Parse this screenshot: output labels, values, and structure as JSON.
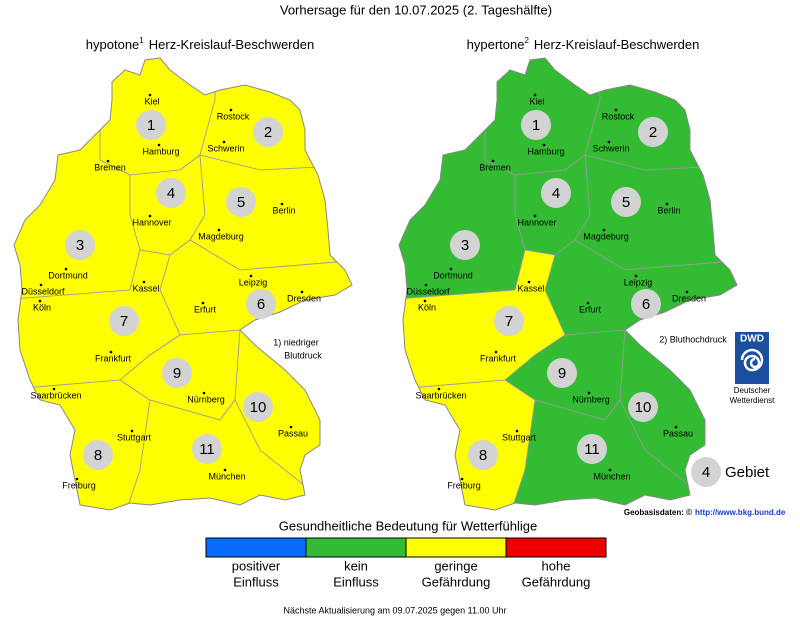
{
  "title": "Vorhersage für den 10.07.2025 (2. Tageshälfte)",
  "maps": [
    {
      "name": "hypotone",
      "sup": "1",
      "subtitle": "Herz-Kreislauf-Beschwerden",
      "regions": [
        {
          "label": "1",
          "color": "#ffff00"
        },
        {
          "label": "2",
          "color": "#ffff00"
        },
        {
          "label": "3",
          "color": "#ffff00"
        },
        {
          "label": "4",
          "color": "#ffff00"
        },
        {
          "label": "5",
          "color": "#ffff00"
        },
        {
          "label": "6",
          "color": "#ffff00"
        },
        {
          "label": "7",
          "color": "#ffff00"
        },
        {
          "label": "8",
          "color": "#ffff00"
        },
        {
          "label": "9",
          "color": "#ffff00"
        },
        {
          "label": "10",
          "color": "#ffff00"
        },
        {
          "label": "11",
          "color": "#ffff00"
        }
      ],
      "cities": [
        "Kiel",
        "Rostock",
        "Hamburg",
        "Schwerin",
        "Bremen",
        "Hannover",
        "Berlin",
        "Magdeburg",
        "Dortmund",
        "Düsseldorf",
        "Köln",
        "Kassel",
        "Leipzig",
        "Dresden",
        "Erfurt",
        "Frankfurt",
        "Saarbrücken",
        "Nürnberg",
        "Passau",
        "Stuttgart",
        "München",
        "Freiburg"
      ],
      "note": [
        "1) niedriger",
        "Blutdruck"
      ]
    },
    {
      "name": "hypertone",
      "sup": "2",
      "subtitle": "Herz-Kreislauf-Beschwerden",
      "regions": [
        {
          "label": "1",
          "color": "#33bb33"
        },
        {
          "label": "2",
          "color": "#33bb33"
        },
        {
          "label": "3",
          "color": "#33bb33"
        },
        {
          "label": "4",
          "color": "#33bb33"
        },
        {
          "label": "5",
          "color": "#33bb33"
        },
        {
          "label": "6",
          "color": "#33bb33"
        },
        {
          "label": "7",
          "color": "#ffff00"
        },
        {
          "label": "8",
          "color": "#ffff00"
        },
        {
          "label": "9",
          "color": "#33bb33"
        },
        {
          "label": "10",
          "color": "#33bb33"
        },
        {
          "label": "11",
          "color": "#33bb33"
        }
      ],
      "cities": [
        "Kiel",
        "Rostock",
        "Hamburg",
        "Schwerin",
        "Bremen",
        "Hannover",
        "Berlin",
        "Magdeburg",
        "Dortmund",
        "Düsseldorf",
        "Köln",
        "Kassel",
        "Leipzig",
        "Dresden",
        "Erfurt",
        "Frankfurt",
        "Saarbrücken",
        "Nürnberg",
        "Passau",
        "Stuttgart",
        "München",
        "Freiburg"
      ],
      "note": [
        "2) Bluthochdruck"
      ]
    }
  ],
  "dwd": {
    "logo": "DWD",
    "lines": [
      "Deutscher",
      "Wetterdienst"
    ]
  },
  "key": {
    "number": "4",
    "label": "Gebiet"
  },
  "source": {
    "label": "Geobasisdaten: ©",
    "link": "http://www.bkg.bund.de"
  },
  "legend": {
    "title": "Gesundheitliche Bedeutung für Wetterfühlige",
    "items": [
      {
        "color": "#0a6cff",
        "lines": [
          "positiver",
          "Einfluss"
        ]
      },
      {
        "color": "#33bb33",
        "lines": [
          "kein",
          "Einfluss"
        ]
      },
      {
        "color": "#ffff00",
        "lines": [
          "geringe",
          "Gefährdung"
        ]
      },
      {
        "color": "#ee0000",
        "lines": [
          "hohe",
          "Gefährdung"
        ]
      }
    ]
  },
  "footer": "Nächste Aktualisierung am 09.07.2025 gegen 11.00 Uhr"
}
